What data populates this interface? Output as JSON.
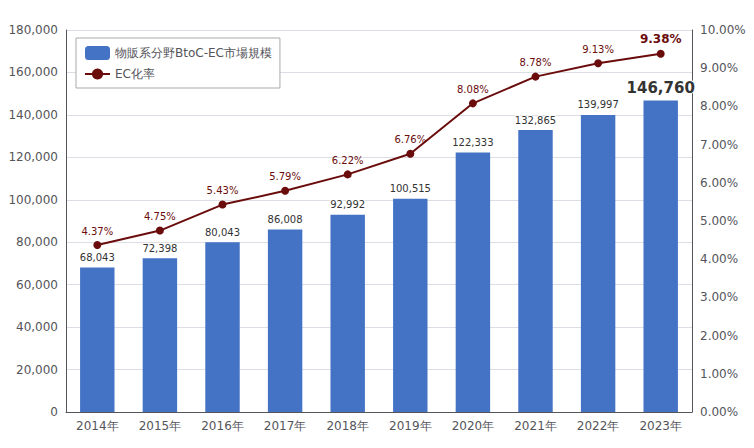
{
  "chart_data": {
    "type": "bar",
    "categories": [
      "2014年",
      "2015年",
      "2016年",
      "2017年",
      "2018年",
      "2019年",
      "2020年",
      "2021年",
      "2022年",
      "2023年"
    ],
    "series": [
      {
        "name": "物販系分野BtoC-EC市場規模",
        "type": "bar",
        "color": "#4472C4",
        "values": [
          68043,
          72398,
          80043,
          86008,
          92992,
          100515,
          122333,
          132865,
          139997,
          146760
        ],
        "value_labels": [
          "68,043",
          "72,398",
          "80,043",
          "86,008",
          "92,992",
          "100,515",
          "122,333",
          "132,865",
          "139,997",
          "146,760"
        ]
      },
      {
        "name": "EC化率",
        "type": "line",
        "axis": "y2",
        "color": "#6B0C0C",
        "marker": "circle",
        "line_style": "solid",
        "values": [
          4.37,
          4.75,
          5.43,
          5.79,
          6.22,
          6.76,
          8.08,
          8.78,
          9.13,
          9.38
        ],
        "value_labels": [
          "4.37%",
          "4.75%",
          "5.43%",
          "5.79%",
          "6.22%",
          "6.76%",
          "8.08%",
          "8.78%",
          "9.13%",
          "9.38%"
        ]
      }
    ],
    "ylim": [
      0,
      180000
    ],
    "yticks": [
      {
        "value": 0,
        "label": "0"
      },
      {
        "value": 20000,
        "label": "20,000"
      },
      {
        "value": 40000,
        "label": "40,000"
      },
      {
        "value": 60000,
        "label": "60,000"
      },
      {
        "value": 80000,
        "label": "80,000"
      },
      {
        "value": 100000,
        "label": "100,000"
      },
      {
        "value": 120000,
        "label": "120,000"
      },
      {
        "value": 140000,
        "label": "140,000"
      },
      {
        "value": 160000,
        "label": "160,000"
      },
      {
        "value": 180000,
        "label": "180,000"
      }
    ],
    "y2lim": [
      0,
      10
    ],
    "y2ticks": [
      {
        "value": 0,
        "label": "0.00%"
      },
      {
        "value": 1,
        "label": "1.00%"
      },
      {
        "value": 2,
        "label": "2.00%"
      },
      {
        "value": 3,
        "label": "3.00%"
      },
      {
        "value": 4,
        "label": "4.00%"
      },
      {
        "value": 5,
        "label": "5.00%"
      },
      {
        "value": 6,
        "label": "6.00%"
      },
      {
        "value": 7,
        "label": "7.00%"
      },
      {
        "value": 8,
        "label": "8.00%"
      },
      {
        "value": 9,
        "label": "9.00%"
      },
      {
        "value": 10,
        "label": "10.00%"
      }
    ],
    "grid": true,
    "legend": "upper left",
    "data_labels": true
  }
}
